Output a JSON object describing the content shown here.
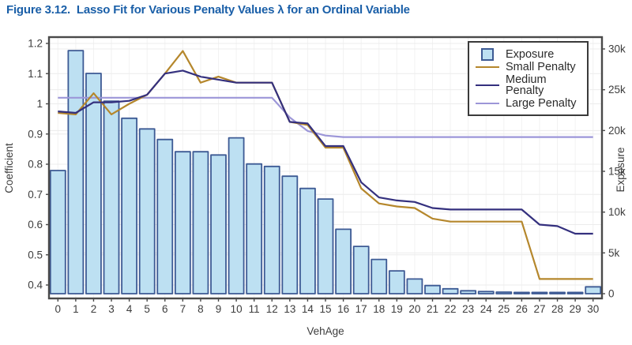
{
  "title": "Figure 3.12.  Lasso Fit for Various Penalty Values λ for an Ordinal Variable",
  "colors": {
    "title": "#1a5fa8",
    "bar_fill": "#bde0f2",
    "bar_stroke": "#3d5a94",
    "small_penalty": "#b5872c",
    "medium_penalty": "#34307e",
    "large_penalty": "#9c96d8",
    "frame": "#4a4a4a",
    "gridline": "#ececec"
  },
  "chart_data": {
    "type": "bar+line combo, dual y-axis",
    "xlabel": "VehAge",
    "x": [
      0,
      1,
      2,
      3,
      4,
      5,
      6,
      7,
      8,
      9,
      10,
      11,
      12,
      13,
      14,
      15,
      16,
      17,
      18,
      19,
      20,
      21,
      22,
      23,
      24,
      25,
      26,
      27,
      28,
      29,
      30
    ],
    "x_tick_labels": [
      "0",
      "1",
      "2",
      "3",
      "4",
      "5",
      "6",
      "7",
      "8",
      "9",
      "10",
      "11",
      "12",
      "13",
      "14",
      "15",
      "16",
      "17",
      "18",
      "19",
      "20",
      "21",
      "22",
      "23",
      "24",
      "25",
      "26",
      "27",
      "28",
      "29",
      "30"
    ],
    "left_axis": {
      "label": "Coefficient",
      "tick_values": [
        0.4,
        0.5,
        0.6,
        0.7,
        0.8,
        0.9,
        1.0,
        1.1,
        1.2
      ],
      "tick_labels": [
        "0.4",
        "0.5",
        "0.6",
        "0.7",
        "0.8",
        "0.9",
        "1",
        "1.1",
        "1.2"
      ]
    },
    "right_axis": {
      "label": "Exposure",
      "tick_values": [
        0,
        5000,
        10000,
        15000,
        20000,
        25000,
        30000
      ],
      "tick_labels": [
        "0",
        "5k",
        "10k",
        "15k",
        "20k",
        "25k",
        "30k"
      ]
    },
    "ylim_left": [
      0.4,
      1.2
    ],
    "ylim_right": [
      0,
      30000
    ],
    "grid": "on",
    "legend_position": "top-right inside plot",
    "bars": {
      "name": "Exposure",
      "axis": "right",
      "values": [
        15100,
        29800,
        27000,
        23600,
        21500,
        20200,
        18900,
        17400,
        17400,
        17000,
        19100,
        15900,
        15600,
        14400,
        12900,
        11600,
        7900,
        5800,
        4200,
        2800,
        1800,
        1000,
        600,
        360,
        260,
        190,
        150,
        150,
        150,
        150,
        840
      ]
    },
    "series": [
      {
        "name": "Small Penalty",
        "axis": "left",
        "color_key": "small_penalty",
        "values": [
          0.97,
          0.965,
          1.035,
          0.965,
          1.0,
          1.03,
          1.1,
          1.175,
          1.07,
          1.09,
          1.07,
          1.07,
          1.07,
          0.94,
          0.93,
          0.855,
          0.855,
          0.72,
          0.67,
          0.66,
          0.655,
          0.62,
          0.61,
          0.61,
          0.61,
          0.61,
          0.61,
          0.42,
          0.42,
          0.42,
          0.42
        ]
      },
      {
        "name": "Medium Penalty",
        "axis": "left",
        "color_key": "medium_penalty",
        "values": [
          0.975,
          0.97,
          1.005,
          1.005,
          1.01,
          1.03,
          1.1,
          1.11,
          1.09,
          1.08,
          1.07,
          1.07,
          1.07,
          0.94,
          0.935,
          0.86,
          0.86,
          0.74,
          0.69,
          0.68,
          0.675,
          0.655,
          0.65,
          0.65,
          0.65,
          0.65,
          0.65,
          0.6,
          0.595,
          0.57,
          0.57
        ]
      },
      {
        "name": "Large Penalty",
        "axis": "left",
        "color_key": "large_penalty",
        "values": [
          1.02,
          1.02,
          1.02,
          1.02,
          1.02,
          1.02,
          1.02,
          1.02,
          1.02,
          1.02,
          1.02,
          1.02,
          1.02,
          0.955,
          0.91,
          0.895,
          0.89,
          0.89,
          0.89,
          0.89,
          0.89,
          0.89,
          0.89,
          0.89,
          0.89,
          0.89,
          0.89,
          0.89,
          0.89,
          0.89,
          0.89
        ]
      }
    ]
  }
}
